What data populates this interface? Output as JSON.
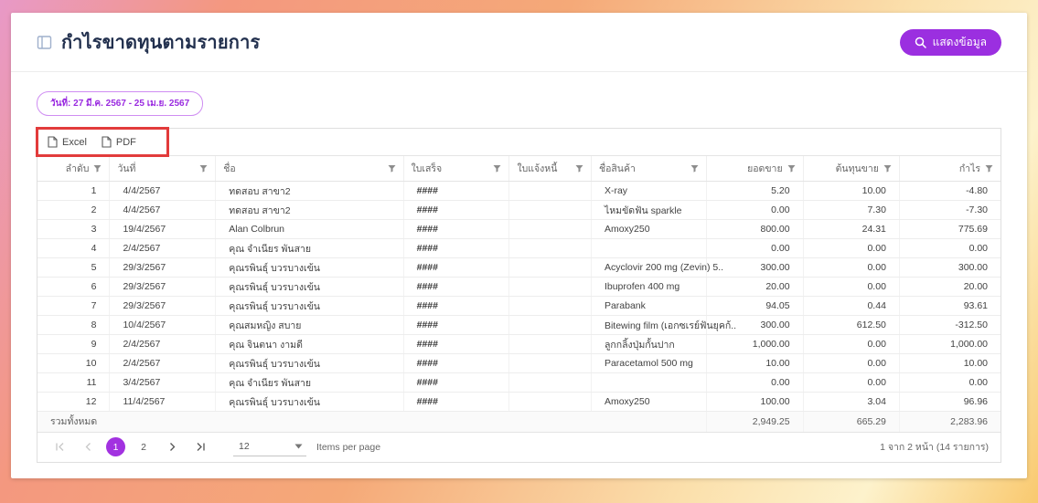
{
  "page": {
    "title": "กำไรขาดทุนตามรายการ",
    "show_data_button": "แสดงข้อมูล",
    "date_chip": "วันที่: 27 มี.ค. 2567 - 25 เม.ย. 2567"
  },
  "toolbar": {
    "excel_label": "Excel",
    "pdf_label": "PDF"
  },
  "table": {
    "columns": [
      "ลำดับ",
      "วันที่",
      "ชื่อ",
      "ใบเสร็จ",
      "ใบแจ้งหนี้",
      "ชื่อสินค้า",
      "ยอดขาย",
      "ต้นทุนขาย",
      "กำไร"
    ],
    "rows": [
      {
        "no": "1",
        "date": "4/4/2567",
        "name": "ทดสอบ สาขา2",
        "receipt": "####",
        "invoice": "",
        "product": "X-ray",
        "sales": "5.20",
        "cost": "10.00",
        "profit": "-4.80"
      },
      {
        "no": "2",
        "date": "4/4/2567",
        "name": "ทดสอบ สาขา2",
        "receipt": "####",
        "invoice": "",
        "product": "ไหมขัดฟัน sparkle",
        "sales": "0.00",
        "cost": "7.30",
        "profit": "-7.30"
      },
      {
        "no": "3",
        "date": "19/4/2567",
        "name": "Alan Colbrun",
        "receipt": "####",
        "invoice": "",
        "product": "Amoxy250",
        "sales": "800.00",
        "cost": "24.31",
        "profit": "775.69"
      },
      {
        "no": "4",
        "date": "2/4/2567",
        "name": "คุณ จำเนียร พันสาย",
        "receipt": "####",
        "invoice": "",
        "product": "",
        "sales": "0.00",
        "cost": "0.00",
        "profit": "0.00"
      },
      {
        "no": "5",
        "date": "29/3/2567",
        "name": "คุณรพินธุ์ บวรบางเข้น",
        "receipt": "####",
        "invoice": "",
        "product": "Acyclovir 200 mg (Zevin) 5..",
        "sales": "300.00",
        "cost": "0.00",
        "profit": "300.00"
      },
      {
        "no": "6",
        "date": "29/3/2567",
        "name": "คุณรพินธุ์ บวรบางเข้น",
        "receipt": "####",
        "invoice": "",
        "product": "Ibuprofen 400 mg",
        "sales": "20.00",
        "cost": "0.00",
        "profit": "20.00"
      },
      {
        "no": "7",
        "date": "29/3/2567",
        "name": "คุณรพินธุ์ บวรบางเข้น",
        "receipt": "####",
        "invoice": "",
        "product": "Parabank",
        "sales": "94.05",
        "cost": "0.44",
        "profit": "93.61"
      },
      {
        "no": "8",
        "date": "10/4/2567",
        "name": "คุณสมหญิง สบาย",
        "receipt": "####",
        "invoice": "",
        "product": "Bitewing film (เอกซเรย์ฟันยุคก้..",
        "sales": "300.00",
        "cost": "612.50",
        "profit": "-312.50"
      },
      {
        "no": "9",
        "date": "2/4/2567",
        "name": "คุณ จินตนา งามดี",
        "receipt": "####",
        "invoice": "",
        "product": "ลูกกลิ้งปุ่มกั้นปาก",
        "sales": "1,000.00",
        "cost": "0.00",
        "profit": "1,000.00"
      },
      {
        "no": "10",
        "date": "2/4/2567",
        "name": "คุณรพินธุ์ บวรบางเข้น",
        "receipt": "####",
        "invoice": "",
        "product": "Paracetamol 500 mg",
        "sales": "10.00",
        "cost": "0.00",
        "profit": "10.00"
      },
      {
        "no": "11",
        "date": "3/4/2567",
        "name": "คุณ จำเนียร พันสาย",
        "receipt": "####",
        "invoice": "",
        "product": "",
        "sales": "0.00",
        "cost": "0.00",
        "profit": "0.00"
      },
      {
        "no": "12",
        "date": "11/4/2567",
        "name": "คุณรพินธุ์ บวรบางเข้น",
        "receipt": "####",
        "invoice": "",
        "product": "Amoxy250",
        "sales": "100.00",
        "cost": "3.04",
        "profit": "96.96"
      }
    ],
    "total_label": "รวมทั้งหมด",
    "total_sales": "2,949.25",
    "total_cost": "665.29",
    "total_profit": "2,283.96"
  },
  "pagination": {
    "current_page": "1",
    "page_2": "2",
    "page_size": "12",
    "items_per_page_label": "Items per page",
    "range_summary": "1 จาก 2 หน้า (14 รายการ)"
  },
  "icons": {
    "header": "report-icon",
    "show_data": "search-icon",
    "export": "file-icon",
    "column_filter": "filter-funnel-icon",
    "page_size_caret": "chevron-down-icon"
  },
  "colors": {
    "accent_purple": "#9b2fe0",
    "annotation_red": "#e23b3b",
    "chip_purple": "#9a2be0"
  }
}
